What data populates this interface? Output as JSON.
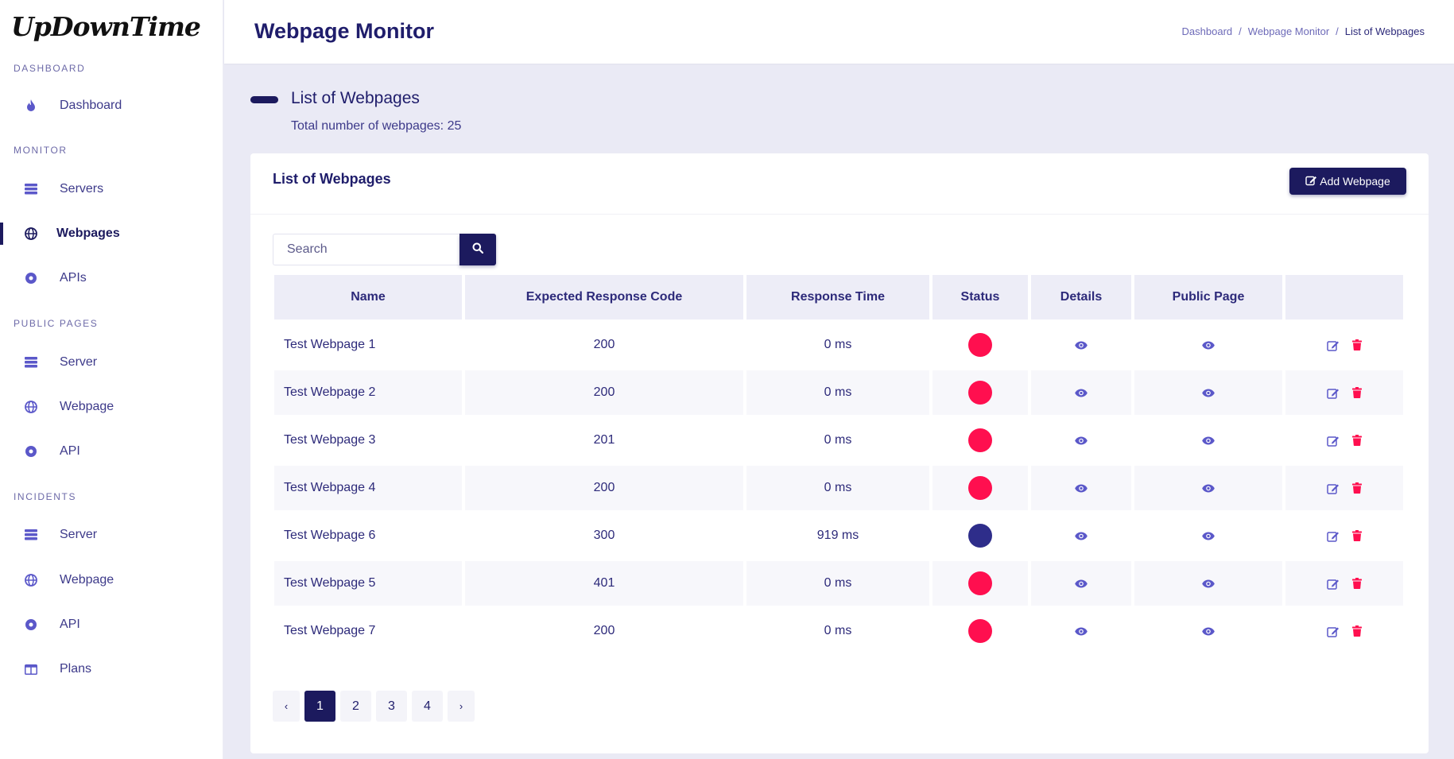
{
  "app": {
    "logo": "UpDownTime"
  },
  "sidebar": {
    "sections": [
      {
        "label": "DASHBOARD"
      },
      {
        "label": "MONITOR"
      },
      {
        "label": "PUBLIC PAGES"
      },
      {
        "label": "INCIDENTS"
      }
    ],
    "items": [
      {
        "label": "Dashboard",
        "icon": "fire-icon"
      },
      {
        "label": "Servers",
        "icon": "server-icon"
      },
      {
        "label": "Webpages",
        "icon": "globe-icon",
        "active": true
      },
      {
        "label": "APIs",
        "icon": "dot-circle-icon"
      },
      {
        "label": "Server",
        "icon": "server-icon"
      },
      {
        "label": "Webpage",
        "icon": "globe-icon"
      },
      {
        "label": "API",
        "icon": "dot-circle-icon"
      },
      {
        "label": "Server",
        "icon": "server-icon"
      },
      {
        "label": "Webpage",
        "icon": "globe-icon"
      },
      {
        "label": "API",
        "icon": "dot-circle-icon"
      },
      {
        "label": "Plans",
        "icon": "columns-icon"
      }
    ]
  },
  "header": {
    "title": "Webpage Monitor",
    "breadcrumb": [
      "Dashboard",
      "Webpage Monitor",
      "List of Webpages"
    ]
  },
  "section": {
    "title": "List of Webpages",
    "subtitle": "Total number of webpages: 25"
  },
  "card": {
    "title": "List of Webpages",
    "add_button": "Add Webpage",
    "search_placeholder": "Search"
  },
  "table": {
    "columns": [
      "Name",
      "Expected Response Code",
      "Response Time",
      "Status",
      "Details",
      "Public Page",
      ""
    ],
    "rows": [
      {
        "name": "Test Webpage 1",
        "code": "200",
        "time": "0 ms",
        "status": "down"
      },
      {
        "name": "Test Webpage 2",
        "code": "200",
        "time": "0 ms",
        "status": "down"
      },
      {
        "name": "Test Webpage 3",
        "code": "201",
        "time": "0 ms",
        "status": "down"
      },
      {
        "name": "Test Webpage 4",
        "code": "200",
        "time": "0 ms",
        "status": "down"
      },
      {
        "name": "Test Webpage 6",
        "code": "300",
        "time": "919 ms",
        "status": "up"
      },
      {
        "name": "Test Webpage 5",
        "code": "401",
        "time": "0 ms",
        "status": "down"
      },
      {
        "name": "Test Webpage 7",
        "code": "200",
        "time": "0 ms",
        "status": "down"
      }
    ]
  },
  "pagination": {
    "prev": "‹",
    "next": "›",
    "pages": [
      "1",
      "2",
      "3",
      "4"
    ],
    "current": "1"
  },
  "colors": {
    "primary": "#1c1a5e",
    "status_down": "#ff0f4f",
    "status_up": "#2e2d8a",
    "icon": "#5b58c9",
    "delete": "#ff0f4f"
  }
}
